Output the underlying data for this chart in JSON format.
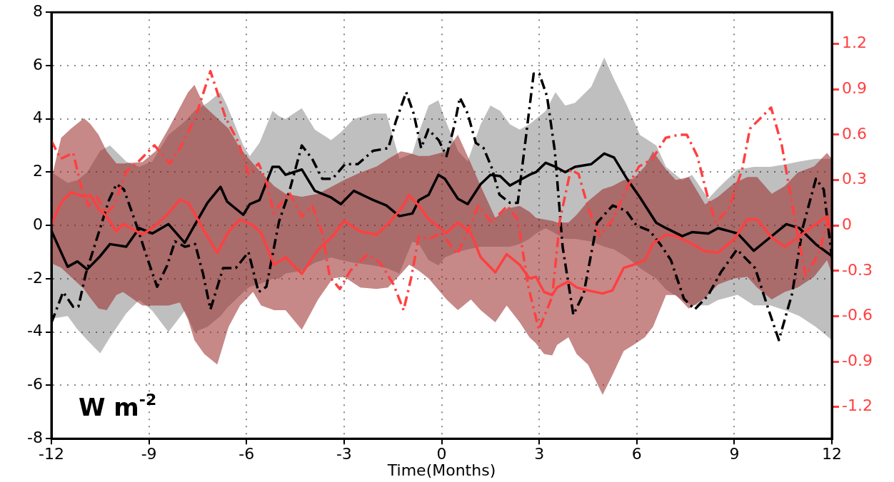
{
  "chart_data": {
    "type": "line",
    "xlabel": "Time(Months)",
    "annotations": [
      "W m$^{-2}$"
    ],
    "xlim": [
      -12,
      12
    ],
    "xticks": [
      -12,
      -9,
      -6,
      -3,
      0,
      3,
      6,
      9,
      12
    ],
    "ylim": [
      -8,
      8
    ],
    "yticks": [
      -8,
      -6,
      -4,
      -2,
      0,
      2,
      4,
      6,
      8
    ],
    "y2lim": [
      -1.41,
      1.41
    ],
    "y2ticks": [
      -1.2,
      -0.9,
      -0.6,
      -0.3,
      0,
      0.3,
      0.6,
      0.9,
      1.2
    ],
    "grid": true,
    "legend": false,
    "marker": "none",
    "series": [
      {
        "color": "#000000",
        "line_style": "solid",
        "x": [
          -12,
          -11.5,
          -11.2,
          -10.9,
          -10.5,
          -10.2,
          -9.7,
          -9.3,
          -8.9,
          -8.4,
          -7.9,
          -7.6,
          -7.2,
          -6.8,
          -6.6,
          -6.1,
          -5.9,
          -5.6,
          -5.2,
          -5.0,
          -4.8,
          -4.3,
          -3.9,
          -3.4,
          -3.1,
          -2.7,
          -2.1,
          -1.7,
          -1.3,
          -0.9,
          -0.7,
          -0.4,
          -0.1,
          0.1,
          0.5,
          0.8,
          1.2,
          1.5,
          1.8,
          2.1,
          2.4,
          2.7,
          2.9,
          3.2,
          3.5,
          3.8,
          4.1,
          4.6,
          5.0,
          5.3,
          5.7,
          6.1,
          6.6,
          6.9,
          7.4,
          7.7,
          8.2,
          8.5,
          9.1,
          9.6,
          10.1,
          10.6,
          11.0,
          11.5,
          12
        ],
        "values": [
          -0.2,
          -1.55,
          -1.35,
          -1.65,
          -1.15,
          -0.7,
          -0.8,
          -0.1,
          -0.3,
          0.05,
          -0.65,
          0,
          0.85,
          1.45,
          0.9,
          0.4,
          0.8,
          0.95,
          2.2,
          2.2,
          1.9,
          2.1,
          1.3,
          1.05,
          0.8,
          1.3,
          0.95,
          0.75,
          0.35,
          0.45,
          0.95,
          1.15,
          1.9,
          1.75,
          1.0,
          0.8,
          1.55,
          1.9,
          1.85,
          1.5,
          1.7,
          1.9,
          2.0,
          2.35,
          2.2,
          2.0,
          2.2,
          2.3,
          2.7,
          2.55,
          1.75,
          1.05,
          0.1,
          -0.1,
          -0.4,
          -0.25,
          -0.3,
          -0.1,
          -0.3,
          -0.95,
          -0.45,
          0.05,
          -0.1,
          -0.7,
          -1.15
        ],
        "lower": [
          -3.5,
          -3.4,
          -3.9,
          -4.3,
          -4.8,
          -4.2,
          -3.3,
          -2.8,
          -3.2,
          -4.0,
          -3.2,
          -4.0,
          -3.8,
          -3.4,
          -3.1,
          -2.5,
          -2.3,
          -2.2,
          -2.0,
          -2.0,
          -1.8,
          -1.7,
          -1.4,
          -1.2,
          -1.3,
          -1.4,
          -1.5,
          -1.6,
          -1.8,
          -0.6,
          -0.7,
          -1.3,
          -1.5,
          -1.2,
          -1.0,
          -0.9,
          -0.8,
          -0.8,
          -0.8,
          -0.8,
          -0.7,
          -0.5,
          -0.3,
          -0.1,
          -0.3,
          -0.5,
          -0.5,
          -0.6,
          -0.8,
          -0.9,
          -1.2,
          -1.6,
          -2.0,
          -2.4,
          -2.8,
          -3.0,
          -3.0,
          -2.8,
          -2.6,
          -3.0,
          -3.0,
          -3.2,
          -3.4,
          -3.8,
          -4.3
        ],
        "upper": [
          2.0,
          1.6,
          1.7,
          2.0,
          2.8,
          3.0,
          2.4,
          2.2,
          2.4,
          3.4,
          3.9,
          4.3,
          4.6,
          5.0,
          4.5,
          3.0,
          2.6,
          3.1,
          4.3,
          4.1,
          4.0,
          4.4,
          3.6,
          3.2,
          3.5,
          4.0,
          4.2,
          4.2,
          2.5,
          2.7,
          3.5,
          4.5,
          4.7,
          4.0,
          2.8,
          2.4,
          3.8,
          4.5,
          4.3,
          3.8,
          3.6,
          3.8,
          4.0,
          4.3,
          5.0,
          4.5,
          4.6,
          5.2,
          6.3,
          5.5,
          4.5,
          3.4,
          3.0,
          2.2,
          1.7,
          1.9,
          1.0,
          1.4,
          2.1,
          2.2,
          2.2,
          2.3,
          2.4,
          2.5,
          2.5
        ]
      },
      {
        "color": "#000000",
        "line_style": "dashed",
        "x": [
          -12,
          -11.64,
          -11.33,
          -11.17,
          -10.94,
          -10.23,
          -10.0,
          -9.77,
          -9.38,
          -9.06,
          -8.75,
          -8.44,
          -8.2,
          -7.89,
          -7.58,
          -7.34,
          -7.11,
          -6.72,
          -6.33,
          -5.94,
          -5.63,
          -5.39,
          -5.0,
          -4.69,
          -4.3,
          -3.98,
          -3.67,
          -3.36,
          -2.97,
          -2.58,
          -2.11,
          -1.64,
          -1.41,
          -1.09,
          -0.86,
          -0.63,
          -0.41,
          -0.09,
          0.15,
          0.4,
          0.56,
          0.8,
          1.05,
          1.29,
          1.53,
          1.78,
          2.1,
          2.34,
          2.59,
          2.83,
          3.0,
          3.24,
          3.48,
          3.72,
          4.05,
          4.37,
          4.78,
          5.26,
          5.67,
          5.99,
          6.4,
          6.72,
          7.05,
          7.45,
          7.78,
          8.18,
          8.59,
          9.08,
          9.64,
          10.05,
          10.37,
          10.78,
          11.1,
          11.51,
          11.75,
          12
        ],
        "values": [
          -3.65,
          -2.5,
          -3.05,
          -3.05,
          -1.8,
          0.95,
          1.55,
          1.35,
          0,
          -1.2,
          -2.3,
          -1.5,
          -0.6,
          -0.8,
          -0.7,
          -1.8,
          -3.15,
          -1.6,
          -1.6,
          -1.0,
          -2.5,
          -2.3,
          0.15,
          1.25,
          3.0,
          2.5,
          1.75,
          1.75,
          2.3,
          2.3,
          2.8,
          2.9,
          3.9,
          5.0,
          4.2,
          2.9,
          3.6,
          3.2,
          2.6,
          3.8,
          4.8,
          4.2,
          3.1,
          2.9,
          2.2,
          1.15,
          0.85,
          0.85,
          3.3,
          5.7,
          5.7,
          4.85,
          2.8,
          -0.8,
          -3.35,
          -2.55,
          0.1,
          0.75,
          0.55,
          0,
          -0.2,
          -0.7,
          -1.3,
          -2.75,
          -3.15,
          -2.65,
          -1.75,
          -0.9,
          -1.6,
          -3.15,
          -4.3,
          -2.55,
          -0.1,
          1.75,
          1.35,
          -1.2
        ]
      },
      {
        "color": "#ff4040",
        "line_style": "solid",
        "axis": "y2",
        "x": [
          -12,
          -11.7,
          -11.4,
          -11.0,
          -10.8,
          -10.55,
          -10.3,
          -10.0,
          -9.8,
          -9.2,
          -8.8,
          -8.4,
          -8.05,
          -7.8,
          -7.6,
          -7.3,
          -6.9,
          -6.55,
          -6.2,
          -5.8,
          -5.55,
          -5.15,
          -4.8,
          -4.3,
          -3.8,
          -3.35,
          -3.0,
          -2.5,
          -2.0,
          -1.65,
          -1.25,
          -1.0,
          -0.7,
          -0.4,
          0.15,
          0.5,
          0.9,
          1.2,
          1.65,
          2.0,
          2.4,
          2.7,
          2.9,
          3.15,
          3.4,
          3.55,
          3.9,
          4.15,
          4.5,
          4.95,
          5.25,
          5.6,
          5.9,
          6.25,
          6.5,
          6.9,
          7.2,
          7.6,
          8.1,
          8.5,
          9.0,
          9.4,
          9.7,
          10.15,
          10.55,
          10.95,
          11.45,
          11.85,
          12
        ],
        "values": [
          0.01,
          0.15,
          0.22,
          0.19,
          0.2,
          0.11,
          0.06,
          -0.04,
          0.01,
          -0.06,
          0,
          0.08,
          0.17,
          0.15,
          0.08,
          -0.04,
          -0.18,
          -0.04,
          0.04,
          0,
          -0.05,
          -0.26,
          -0.21,
          -0.32,
          -0.16,
          -0.07,
          0.03,
          -0.04,
          -0.06,
          0.01,
          0.11,
          0.2,
          0.13,
          0.04,
          -0.05,
          0.02,
          -0.05,
          -0.21,
          -0.31,
          -0.19,
          -0.26,
          -0.35,
          -0.34,
          -0.44,
          -0.46,
          -0.41,
          -0.37,
          -0.41,
          -0.43,
          -0.45,
          -0.43,
          -0.28,
          -0.26,
          -0.23,
          -0.12,
          -0.06,
          -0.07,
          -0.11,
          -0.17,
          -0.18,
          -0.09,
          0.04,
          0.04,
          -0.08,
          -0.14,
          -0.08,
          0,
          0.06,
          -0.05
        ],
        "lower": [
          -0.25,
          -0.28,
          -0.34,
          -0.42,
          -0.48,
          -0.55,
          -0.56,
          -0.46,
          -0.44,
          -0.53,
          -0.53,
          -0.53,
          -0.51,
          -0.62,
          -0.76,
          -0.85,
          -0.92,
          -0.67,
          -0.53,
          -0.44,
          -0.53,
          -0.56,
          -0.56,
          -0.69,
          -0.49,
          -0.35,
          -0.34,
          -0.41,
          -0.42,
          -0.41,
          -0.32,
          -0.26,
          -0.3,
          -0.35,
          -0.49,
          -0.56,
          -0.49,
          -0.56,
          -0.64,
          -0.53,
          -0.64,
          -0.74,
          -0.78,
          -0.85,
          -0.86,
          -0.79,
          -0.74,
          -0.85,
          -0.92,
          -1.12,
          -0.99,
          -0.83,
          -0.79,
          -0.74,
          -0.67,
          -0.46,
          -0.46,
          -0.55,
          -0.48,
          -0.39,
          -0.35,
          -0.34,
          -0.41,
          -0.49,
          -0.44,
          -0.41,
          -0.34,
          -0.23,
          -0.32
        ],
        "upper": [
          0.31,
          0.58,
          0.64,
          0.71,
          0.67,
          0.6,
          0.49,
          0.41,
          0.41,
          0.42,
          0.49,
          0.64,
          0.78,
          0.88,
          0.93,
          0.79,
          0.71,
          0.64,
          0.51,
          0.41,
          0.35,
          0.26,
          0.21,
          0.19,
          0.21,
          0.26,
          0.3,
          0.35,
          0.39,
          0.44,
          0.49,
          0.48,
          0.46,
          0.46,
          0.49,
          0.6,
          0.41,
          0.26,
          0.05,
          0.11,
          0.13,
          0.09,
          0.05,
          0.04,
          0.03,
          0.02,
          0.02,
          0.07,
          0.16,
          0.24,
          0.26,
          0.3,
          0.31,
          0.39,
          0.49,
          0.37,
          0.3,
          0.32,
          0.14,
          0.19,
          0.28,
          0.32,
          0.32,
          0.21,
          0.26,
          0.35,
          0.39,
          0.48,
          0.44
        ]
      },
      {
        "color": "#ff4040",
        "line_style": "dashed",
        "axis": "y2",
        "x": [
          -12,
          -11.72,
          -11.33,
          -11.09,
          -10.86,
          -10.63,
          -10.31,
          -10.08,
          -9.69,
          -9.38,
          -8.83,
          -8.36,
          -8.05,
          -7.58,
          -7.11,
          -6.64,
          -6.25,
          -5.94,
          -5.63,
          -5.39,
          -5.16,
          -4.69,
          -4.3,
          -3.98,
          -3.67,
          -3.44,
          -3.13,
          -2.81,
          -2.27,
          -1.88,
          -1.48,
          -1.17,
          -0.94,
          -0.7,
          -0.41,
          0,
          0.48,
          0.8,
          1.13,
          1.53,
          2.02,
          2.34,
          2.67,
          2.99,
          3.4,
          3.64,
          3.97,
          4.21,
          4.53,
          4.86,
          5.26,
          5.75,
          6.07,
          6.48,
          6.89,
          7.29,
          7.54,
          7.86,
          8.18,
          8.43,
          8.83,
          9.24,
          9.48,
          10.13,
          10.46,
          10.86,
          11.19,
          11.59,
          11.91
        ],
        "values": [
          0.56,
          0.44,
          0.48,
          0.26,
          0.13,
          0.2,
          0.08,
          0.13,
          0.36,
          0.41,
          0.53,
          0.41,
          0.51,
          0.71,
          1.02,
          0.71,
          0.55,
          0.34,
          0.41,
          0.29,
          0.08,
          0.22,
          0.06,
          0.13,
          -0.05,
          -0.34,
          -0.42,
          -0.3,
          -0.19,
          -0.25,
          -0.39,
          -0.56,
          -0.35,
          -0.07,
          -0.09,
          -0.05,
          -0.19,
          -0.04,
          0.13,
          0.02,
          0.13,
          0.04,
          -0.41,
          -0.69,
          -0.47,
          0.04,
          0.37,
          0.34,
          0.1,
          -0.07,
          0.04,
          0.27,
          0.39,
          0.44,
          0.58,
          0.6,
          0.6,
          0.46,
          0.19,
          0.02,
          0.11,
          0.37,
          0.64,
          0.78,
          0.53,
          0.04,
          -0.33,
          -0.19,
          0.06
        ]
      }
    ]
  }
}
